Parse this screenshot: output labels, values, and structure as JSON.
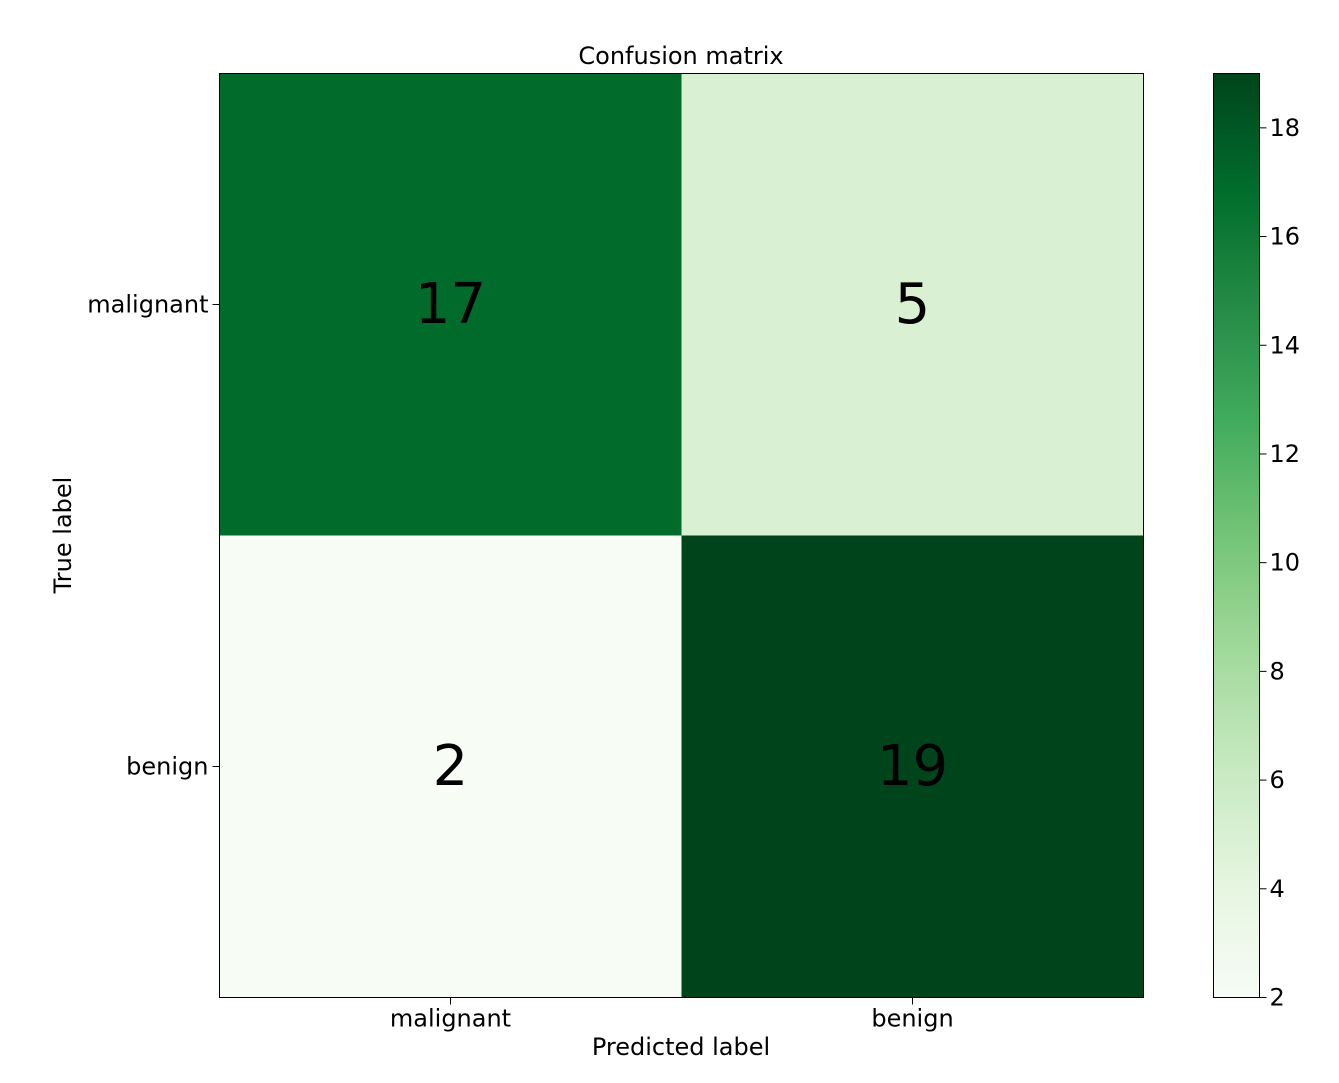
{
  "chart_data": {
    "type": "heatmap",
    "title": "Confusion matrix",
    "xlabel": "Predicted label",
    "ylabel": "True label",
    "x_categories": [
      "malignant",
      "benign"
    ],
    "y_categories": [
      "malignant",
      "benign"
    ],
    "values": [
      [
        17,
        5
      ],
      [
        2,
        19
      ]
    ],
    "colormap": "Greens",
    "colorbar": {
      "range": [
        2,
        19
      ],
      "ticks": [
        2,
        4,
        6,
        8,
        10,
        12,
        14,
        16,
        18
      ]
    },
    "grid": false
  }
}
